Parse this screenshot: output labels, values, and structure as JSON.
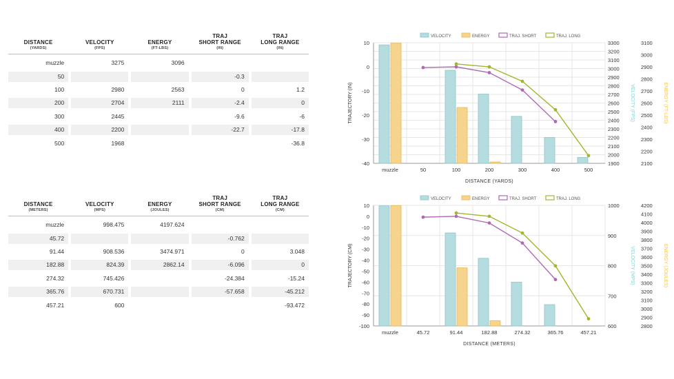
{
  "table_imperial": {
    "headers": [
      {
        "label": "DISTANCE",
        "unit": "(YARDS)"
      },
      {
        "label": "VELOCITY",
        "unit": "(FPS)"
      },
      {
        "label": "ENERGY",
        "unit": "(FT-LBS)"
      },
      {
        "label": "TRAJ\nSHORT RANGE",
        "unit": "(IN)"
      },
      {
        "label": "TRAJ\nLONG RANGE",
        "unit": "(IN)"
      }
    ],
    "rows": [
      [
        "muzzle",
        "3275",
        "3096",
        "",
        ""
      ],
      [
        "50",
        "",
        "",
        "-0.3",
        ""
      ],
      [
        "100",
        "2980",
        "2563",
        "0",
        "1.2"
      ],
      [
        "200",
        "2704",
        "2111",
        "-2.4",
        "0"
      ],
      [
        "300",
        "2445",
        "",
        "-9.6",
        "-6"
      ],
      [
        "400",
        "2200",
        "",
        "-22.7",
        "-17.8"
      ],
      [
        "500",
        "1968",
        "",
        "",
        "-36.8"
      ]
    ]
  },
  "table_metric": {
    "headers": [
      {
        "label": "DISTANCE",
        "unit": "(METERS)"
      },
      {
        "label": "VELOCITY",
        "unit": "(MPS)"
      },
      {
        "label": "ENERGY",
        "unit": "(JOULES)"
      },
      {
        "label": "TRAJ\nSHORT RANGE",
        "unit": "(CM)"
      },
      {
        "label": "TRAJ\nLONG RANGE",
        "unit": "(CM)"
      }
    ],
    "rows": [
      [
        "muzzle",
        "998.475",
        "4197.624",
        "",
        ""
      ],
      [
        "45.72",
        "",
        "",
        "-0.762",
        ""
      ],
      [
        "91.44",
        "908.536",
        "3474.971",
        "0",
        "3.048"
      ],
      [
        "182.88",
        "824.39",
        "2862.14",
        "-6.096",
        "0"
      ],
      [
        "274.32",
        "745.426",
        "",
        "-24.384",
        "-15.24"
      ],
      [
        "365.76",
        "670.731",
        "",
        "-57.658",
        "-45.212"
      ],
      [
        "457.21",
        "600",
        "",
        "",
        "-93.472"
      ]
    ]
  },
  "colors": {
    "velocity": "#b5dde0",
    "velocity_edge": "#8fc4c9",
    "energy": "#f6d48c",
    "energy_edge": "#e7b85a",
    "short": "#b068b4",
    "long": "#a3b52a",
    "velocity_axis": "#87cfd4",
    "energy_axis": "#f0c560"
  },
  "chart_data": [
    {
      "type": "bar+line",
      "legend": [
        "VELOCITY",
        "ENERGY",
        "TRAJ. SHORT",
        "TRAJ. LONG"
      ],
      "categories": [
        "muzzle",
        "50",
        "100",
        "200",
        "300",
        "400",
        "500"
      ],
      "xlabel": "DISTANCE (YARDS)",
      "ylabel": "TRAJECTORY (IN)",
      "y2label": "VELOCITY (FPS)",
      "y3label": "ENERGY (FT-LBS)",
      "ylim": [
        -40,
        10
      ],
      "yticks": [
        "10",
        "0",
        "-10",
        "-20",
        "-30",
        "-40"
      ],
      "y2lim": [
        1900,
        3300
      ],
      "y2ticks": [
        "3300",
        "3200",
        "3100",
        "3000",
        "2900",
        "2800",
        "2700",
        "2600",
        "2500",
        "2400",
        "2300",
        "2200",
        "2100",
        "2000",
        "1900"
      ],
      "y3lim": [
        2100,
        3100
      ],
      "y3ticks": [
        "3100",
        "3000",
        "2900",
        "2800",
        "2700",
        "2600",
        "2500",
        "2400",
        "2300",
        "2200",
        "2100"
      ],
      "velocity": [
        3275,
        null,
        2980,
        2704,
        2445,
        2200,
        1968
      ],
      "energy": [
        3096,
        null,
        2563,
        2111,
        null,
        null,
        null
      ],
      "traj_short": [
        null,
        -0.3,
        0,
        -2.4,
        -9.6,
        -22.7,
        null
      ],
      "traj_long": [
        null,
        null,
        1.2,
        0,
        -6,
        -17.8,
        -36.8
      ]
    },
    {
      "type": "bar+line",
      "legend": [
        "VELOCITY",
        "ENERGY",
        "TRAJ. SHORT",
        "TRAJ. LONG"
      ],
      "categories": [
        "muzzle",
        "45.72",
        "91.44",
        "182.88",
        "274.32",
        "365.76",
        "457.21"
      ],
      "xlabel": "DISTANCE (METERS)",
      "ylabel": "TRAJECTORY (CM)",
      "y2label": "VELOCITY (MPS)",
      "y3label": "ENERGY (JOULES)",
      "ylim": [
        -100,
        10
      ],
      "yticks": [
        "10",
        "0",
        "-10",
        "-20",
        "-30",
        "-40",
        "-50",
        "-60",
        "-70",
        "-80",
        "-90",
        "-100"
      ],
      "y2lim": [
        600,
        1000
      ],
      "y2ticks": [
        "1000",
        "900",
        "800",
        "700",
        "600"
      ],
      "y3lim": [
        2800,
        4200
      ],
      "y3ticks": [
        "4200",
        "4100",
        "4000",
        "3900",
        "3800",
        "3700",
        "3600",
        "3500",
        "3400",
        "3300",
        "3200",
        "3100",
        "3000",
        "2900",
        "2800"
      ],
      "velocity": [
        998.475,
        null,
        908.536,
        824.39,
        745.426,
        670.731,
        600
      ],
      "energy": [
        4197.624,
        null,
        3474.971,
        2862.14,
        null,
        null,
        null
      ],
      "traj_short": [
        null,
        -0.762,
        0,
        -6.096,
        -24.384,
        -57.658,
        null
      ],
      "traj_long": [
        null,
        null,
        3.048,
        0,
        -15.24,
        -45.212,
        -93.472
      ]
    }
  ]
}
